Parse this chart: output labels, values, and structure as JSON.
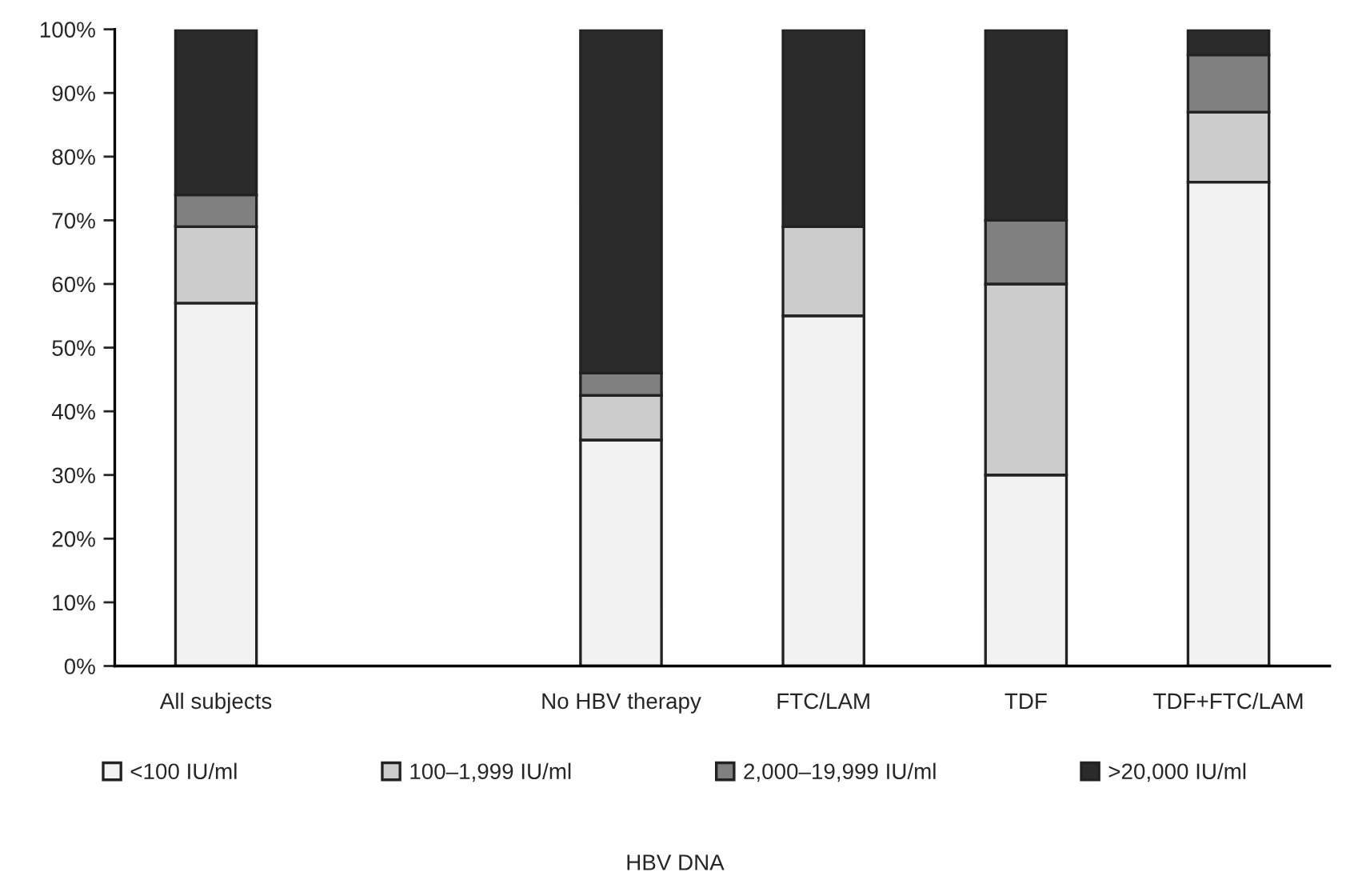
{
  "chart_data": {
    "type": "bar",
    "stacked": true,
    "annotations": [
      "HBV DNA"
    ],
    "categories": [
      "All subjects",
      null,
      "No HBV therapy",
      "FTC/LAM",
      "TDF",
      "TDF+FTC/LAM"
    ],
    "series": [
      {
        "name": "<100 IU/ml",
        "color": "#f2f2f2",
        "values": [
          57,
          null,
          35.5,
          55,
          30,
          76
        ]
      },
      {
        "name": "100–1,999 IU/ml",
        "color": "#cccccc",
        "values": [
          12,
          null,
          7,
          14,
          30,
          11
        ]
      },
      {
        "name": "2,000–19,999 IU/ml",
        "color": "#808080",
        "values": [
          5,
          null,
          3.5,
          0,
          10,
          9
        ]
      },
      {
        "name": ">20,000 IU/ml",
        "color": "#2b2b2b",
        "values": [
          26,
          null,
          54,
          31,
          30,
          4
        ]
      }
    ],
    "ylim": [
      0,
      100
    ],
    "yticks": [
      {
        "value": 0,
        "label": "0%"
      },
      {
        "value": 10,
        "label": "10%"
      },
      {
        "value": 20,
        "label": "20%"
      },
      {
        "value": 30,
        "label": "30%"
      },
      {
        "value": 40,
        "label": "40%"
      },
      {
        "value": 50,
        "label": "50%"
      },
      {
        "value": 60,
        "label": "60%"
      },
      {
        "value": 70,
        "label": "70%"
      },
      {
        "value": 80,
        "label": "80%"
      },
      {
        "value": 90,
        "label": "90%"
      },
      {
        "value": 100,
        "label": "100%"
      }
    ],
    "grid": false,
    "legend": "bottom"
  }
}
